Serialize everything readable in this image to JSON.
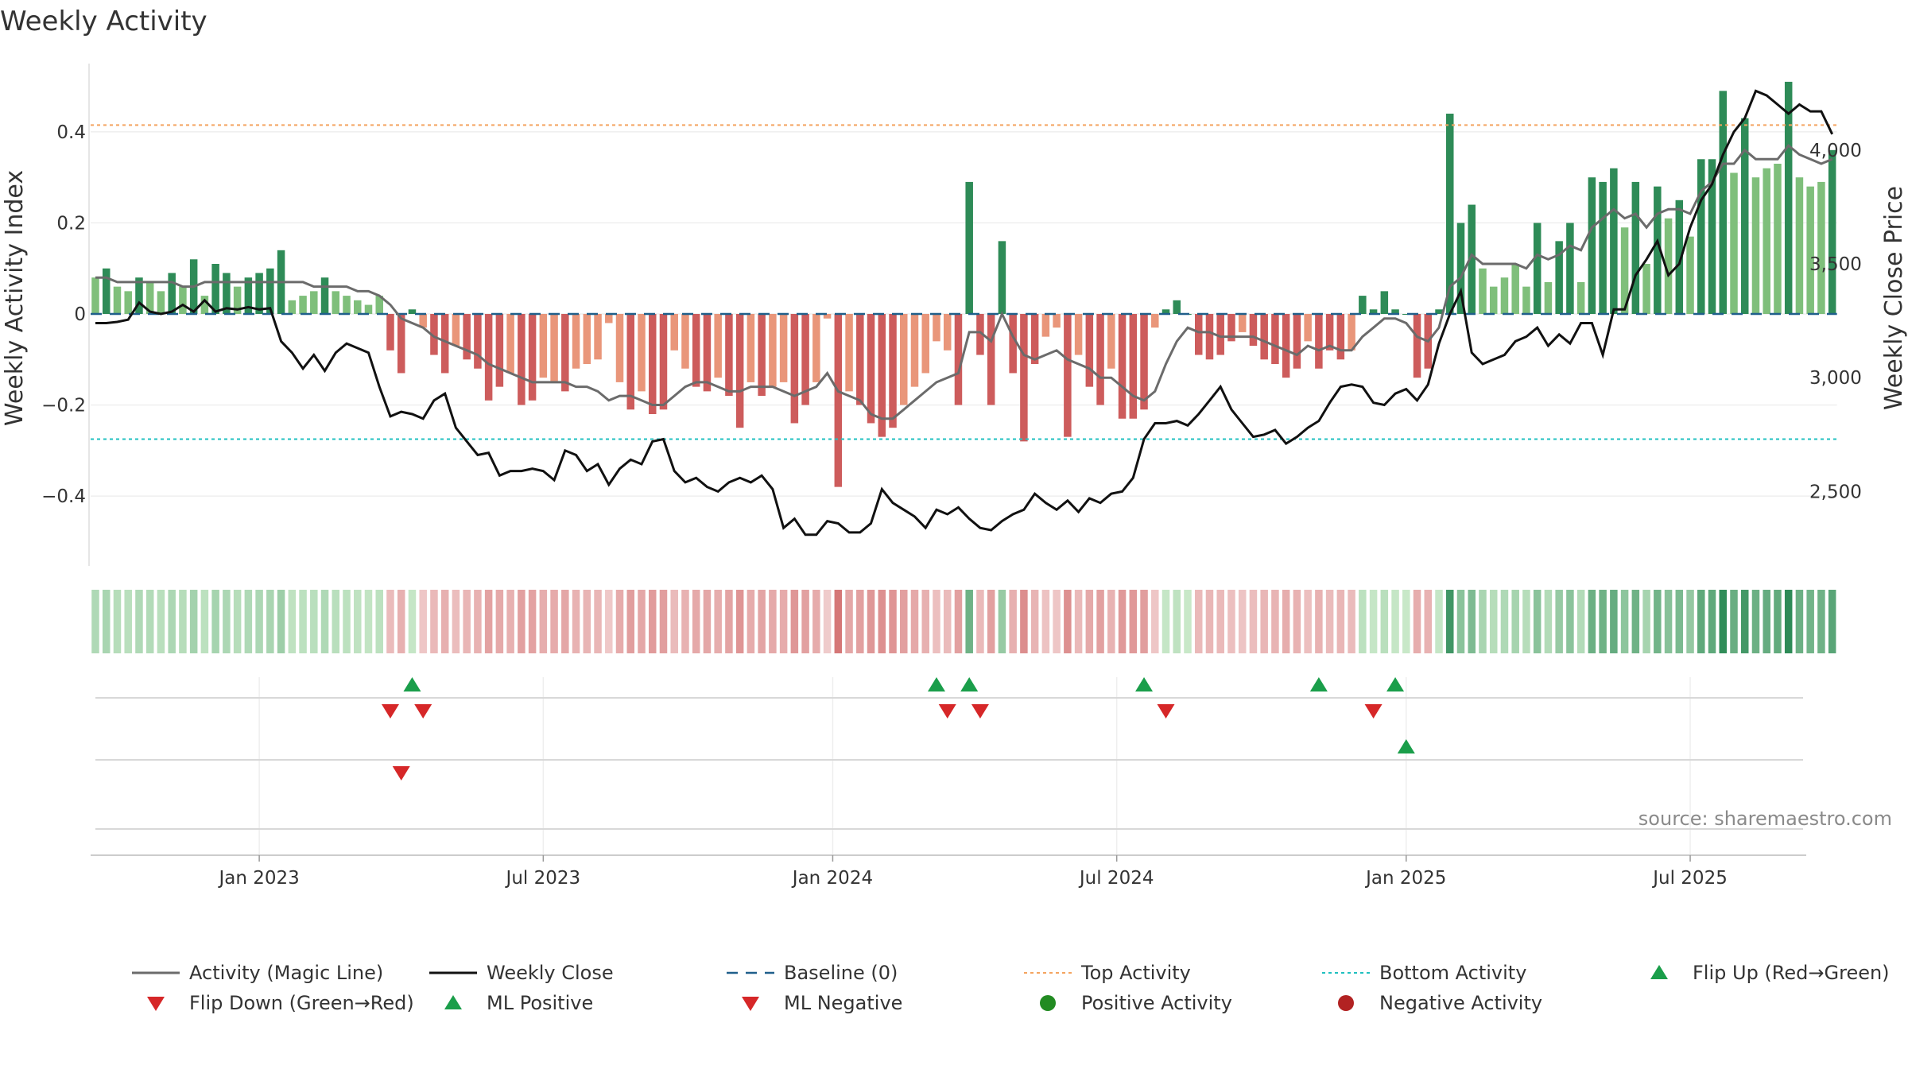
{
  "chart_data": {
    "type": "bar",
    "title": "Weekly Activity",
    "ylabel": "Weekly Activity Index",
    "y2label": "Weekly Close Price",
    "ylim": [
      -0.55,
      0.55
    ],
    "y2lim": [
      2180,
      4380
    ],
    "yticks": [
      -0.4,
      -0.2,
      0,
      0.2,
      0.4
    ],
    "ytick_labels": [
      "−0.4",
      "−0.2",
      "0",
      "0.2",
      "0.4"
    ],
    "y2ticks": [
      2500,
      3000,
      3500,
      4000
    ],
    "y2tick_labels": [
      "2,500",
      "3,000",
      "3,500",
      "4,000"
    ],
    "xticks": [
      {
        "label": "Jan 2023",
        "week": 15
      },
      {
        "label": "Jul 2023",
        "week": 41
      },
      {
        "label": "Jan 2024",
        "week": 67.5
      },
      {
        "label": "Jul 2024",
        "week": 93.5
      },
      {
        "label": "Jan 2025",
        "week": 120
      },
      {
        "label": "Jul 2025",
        "week": 146
      }
    ],
    "top_activity": 0.415,
    "bottom_activity": -0.275,
    "baseline": 0,
    "activity": [
      0.08,
      0.1,
      0.06,
      0.05,
      0.08,
      0.07,
      0.05,
      0.09,
      0.06,
      0.12,
      0.04,
      0.11,
      0.09,
      0.06,
      0.08,
      0.09,
      0.1,
      0.14,
      0.03,
      0.04,
      0.05,
      0.08,
      0.05,
      0.04,
      0.03,
      0.02,
      0.04,
      -0.08,
      -0.13,
      0.01,
      -0.03,
      -0.09,
      -0.13,
      -0.07,
      -0.1,
      -0.12,
      -0.19,
      -0.16,
      -0.13,
      -0.2,
      -0.19,
      -0.14,
      -0.15,
      -0.17,
      -0.12,
      -0.11,
      -0.1,
      -0.02,
      -0.15,
      -0.21,
      -0.17,
      -0.22,
      -0.21,
      -0.08,
      -0.12,
      -0.16,
      -0.17,
      -0.14,
      -0.18,
      -0.25,
      -0.15,
      -0.18,
      -0.16,
      -0.15,
      -0.24,
      -0.2,
      -0.15,
      -0.01,
      -0.38,
      -0.17,
      -0.2,
      -0.24,
      -0.27,
      -0.25,
      -0.2,
      -0.16,
      -0.13,
      -0.06,
      -0.08,
      -0.2,
      0.29,
      -0.09,
      -0.2,
      0.16,
      -0.13,
      -0.28,
      -0.11,
      -0.05,
      -0.03,
      -0.27,
      -0.09,
      -0.16,
      -0.2,
      -0.12,
      -0.23,
      -0.23,
      -0.21,
      -0.03,
      0.01,
      0.03,
      0,
      -0.09,
      -0.1,
      -0.09,
      -0.06,
      -0.04,
      -0.07,
      -0.1,
      -0.11,
      -0.14,
      -0.12,
      -0.06,
      -0.12,
      -0.08,
      -0.1,
      -0.08,
      0.04,
      0.01,
      0.05,
      0.01,
      0,
      -0.14,
      -0.12,
      0.01,
      0.44,
      0.2,
      0.24,
      0.1,
      0.06,
      0.08,
      0.11,
      0.06,
      0.2,
      0.07,
      0.16,
      0.2,
      0.07,
      0.3,
      0.29,
      0.32,
      0.19,
      0.29,
      0.11,
      0.28,
      0.21,
      0.25,
      0.17,
      0.34,
      0.34,
      0.49,
      0.31,
      0.43,
      0.3,
      0.32,
      0.33,
      0.51,
      0.3,
      0.28,
      0.29,
      0.36
    ],
    "magic_line": [
      0.08,
      0.08,
      0.07,
      0.07,
      0.07,
      0.07,
      0.07,
      0.07,
      0.06,
      0.06,
      0.07,
      0.07,
      0.07,
      0.07,
      0.07,
      0.07,
      0.07,
      0.07,
      0.07,
      0.07,
      0.06,
      0.06,
      0.06,
      0.06,
      0.05,
      0.05,
      0.04,
      0.02,
      -0.01,
      -0.02,
      -0.03,
      -0.05,
      -0.06,
      -0.07,
      -0.08,
      -0.09,
      -0.11,
      -0.12,
      -0.13,
      -0.14,
      -0.15,
      -0.15,
      -0.15,
      -0.15,
      -0.16,
      -0.16,
      -0.17,
      -0.19,
      -0.18,
      -0.18,
      -0.19,
      -0.2,
      -0.2,
      -0.18,
      -0.16,
      -0.15,
      -0.15,
      -0.16,
      -0.17,
      -0.17,
      -0.16,
      -0.16,
      -0.16,
      -0.17,
      -0.18,
      -0.17,
      -0.16,
      -0.13,
      -0.17,
      -0.18,
      -0.19,
      -0.22,
      -0.23,
      -0.23,
      -0.21,
      -0.19,
      -0.17,
      -0.15,
      -0.14,
      -0.13,
      -0.04,
      -0.04,
      -0.06,
      0.0,
      -0.05,
      -0.09,
      -0.1,
      -0.09,
      -0.08,
      -0.1,
      -0.11,
      -0.12,
      -0.14,
      -0.14,
      -0.16,
      -0.18,
      -0.19,
      -0.17,
      -0.11,
      -0.06,
      -0.03,
      -0.04,
      -0.04,
      -0.05,
      -0.05,
      -0.05,
      -0.05,
      -0.06,
      -0.07,
      -0.08,
      -0.09,
      -0.07,
      -0.08,
      -0.07,
      -0.08,
      -0.08,
      -0.05,
      -0.03,
      -0.01,
      -0.01,
      -0.02,
      -0.05,
      -0.06,
      -0.03,
      0.06,
      0.08,
      0.13,
      0.11,
      0.11,
      0.11,
      0.11,
      0.1,
      0.13,
      0.12,
      0.13,
      0.15,
      0.14,
      0.19,
      0.21,
      0.23,
      0.21,
      0.22,
      0.19,
      0.22,
      0.23,
      0.23,
      0.22,
      0.27,
      0.29,
      0.33,
      0.33,
      0.36,
      0.34,
      0.34,
      0.34,
      0.37,
      0.35,
      0.34,
      0.33,
      0.34
    ],
    "weekly_close": [
      3240,
      3240,
      3245,
      3255,
      3330,
      3290,
      3280,
      3290,
      3320,
      3290,
      3340,
      3290,
      3305,
      3300,
      3310,
      3300,
      3305,
      3160,
      3110,
      3040,
      3100,
      3030,
      3110,
      3150,
      3130,
      3110,
      2960,
      2830,
      2850,
      2840,
      2820,
      2900,
      2930,
      2780,
      2720,
      2660,
      2670,
      2570,
      2590,
      2590,
      2600,
      2590,
      2550,
      2680,
      2660,
      2590,
      2620,
      2530,
      2600,
      2640,
      2620,
      2720,
      2730,
      2590,
      2540,
      2560,
      2520,
      2500,
      2540,
      2560,
      2540,
      2570,
      2510,
      2340,
      2380,
      2310,
      2310,
      2370,
      2360,
      2320,
      2320,
      2360,
      2510,
      2450,
      2420,
      2390,
      2340,
      2420,
      2400,
      2430,
      2380,
      2340,
      2330,
      2370,
      2400,
      2420,
      2490,
      2450,
      2420,
      2460,
      2410,
      2470,
      2450,
      2490,
      2500,
      2560,
      2730,
      2800,
      2800,
      2810,
      2790,
      2840,
      2900,
      2960,
      2860,
      2800,
      2740,
      2750,
      2770,
      2710,
      2740,
      2780,
      2810,
      2890,
      2960,
      2970,
      2960,
      2890,
      2880,
      2930,
      2950,
      2900,
      2970,
      3150,
      3280,
      3380,
      3110,
      3060,
      3080,
      3100,
      3160,
      3180,
      3220,
      3140,
      3190,
      3150,
      3240,
      3240,
      3100,
      3300,
      3300,
      3450,
      3520,
      3600,
      3450,
      3500,
      3660,
      3780,
      3850,
      3980,
      4080,
      4140,
      4260,
      4240,
      4200,
      4160,
      4200,
      4170,
      4170,
      4070
    ],
    "signal_rows": [
      {
        "name": "flip",
        "up_weeks": [
          29,
          77,
          80,
          96,
          112,
          119
        ],
        "down_weeks": [
          27,
          30,
          78,
          81,
          98,
          117
        ]
      },
      {
        "name": "ml",
        "up_weeks": [
          120
        ],
        "down_weeks": [
          28
        ]
      },
      {
        "name": "activity",
        "up_weeks": [],
        "down_weeks": []
      }
    ],
    "legend": [
      {
        "label": "Activity (Magic Line)",
        "style": "line-grey"
      },
      {
        "label": "Weekly Close",
        "style": "line-black"
      },
      {
        "label": "Baseline (0)",
        "style": "dash-blue"
      },
      {
        "label": "Top Activity",
        "style": "dot-orange"
      },
      {
        "label": "Bottom Activity",
        "style": "dot-cyan"
      },
      {
        "label": "Flip Up (Red→Green)",
        "style": "tri-up"
      },
      {
        "label": "Flip Down (Green→Red)",
        "style": "tri-down"
      },
      {
        "label": "ML Positive",
        "style": "tri-up"
      },
      {
        "label": "ML Negative",
        "style": "tri-down"
      },
      {
        "label": "Positive Activity",
        "style": "circle-green"
      },
      {
        "label": "Negative Activity",
        "style": "circle-red"
      }
    ],
    "source": "source: sharemaestro.com"
  },
  "colors": {
    "pos_strong": "#2e8b57",
    "pos_weak": "#7fbf7b",
    "neg_strong": "#cd5c5c",
    "neg_weak": "#e9967a",
    "magic_line": "#6b6b6b",
    "close_line": "#111111",
    "baseline": "#1f5f8b",
    "top": "#f4a460",
    "bottom": "#20c0c0",
    "up_marker": "#1a9e4a",
    "down_marker": "#d62728",
    "pos_dot": "#228b22",
    "neg_dot": "#b22222"
  }
}
